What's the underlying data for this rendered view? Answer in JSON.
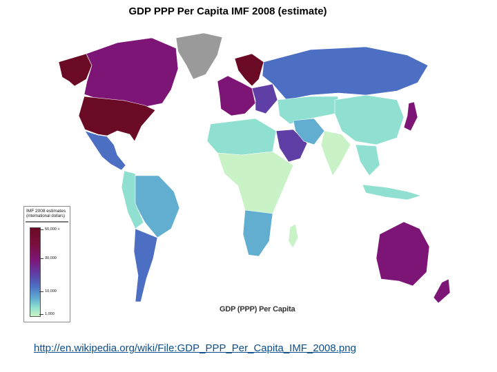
{
  "title": "GDP PPP Per Capita IMF 2008 (estimate)",
  "map_caption": "GDP (PPP) Per Capita",
  "legend": {
    "title": "IMF 2008 estimates",
    "subtitle": "(international dollars)",
    "ticks": [
      {
        "label": "50,000 +",
        "value": 50000
      },
      {
        "label": "30,000",
        "value": 30000
      },
      {
        "label": "10,000",
        "value": 10000
      },
      {
        "label": "1,000",
        "value": 1000
      }
    ]
  },
  "colors": {
    "very_high": "#6b0a24",
    "high": "#7d1577",
    "upper_mid": "#5f3ea6",
    "mid": "#4c6fc3",
    "lower_mid": "#61aed0",
    "low": "#8fe0d0",
    "very_low": "#c9f3c6",
    "no_data": "#9a9a9a"
  },
  "source_link": "http://en.wikipedia.org/wiki/File:GDP_PPP_Per_Capita_IMF_2008.png"
}
